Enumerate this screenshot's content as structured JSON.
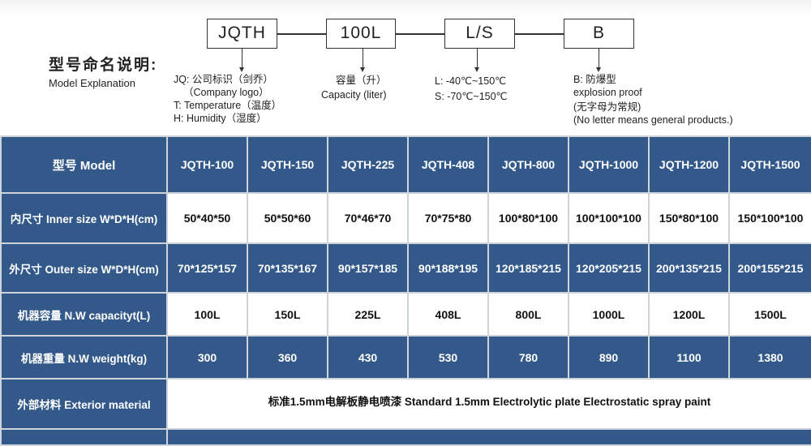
{
  "explanation": {
    "title_zh": "型号命名说明:",
    "title_en": "Model Explanation",
    "boxes": [
      "JQTH",
      "100L",
      "L/S",
      "B"
    ],
    "jq": {
      "line1": "JQ: 公司标识（剑乔）",
      "line2": "（Company logo）",
      "line3": "T: Temperature（温度）",
      "line4": "H: Humidity（湿度）"
    },
    "cap": {
      "line1": "容量（升）",
      "line2": "Capacity (liter)"
    },
    "temp": {
      "line1": "L: -40℃~150℃",
      "line2": "S: -70℃~150℃"
    },
    "b": {
      "line1": "B: 防爆型",
      "line2": "explosion proof",
      "line3": "(无字母为常规)",
      "line4": "(No letter means general products.)"
    }
  },
  "table": {
    "header": {
      "label": "型号 Model",
      "models": [
        "JQTH-100",
        "JQTH-150",
        "JQTH-225",
        "JQTH-408",
        "JQTH-800",
        "JQTH-1000",
        "JQTH-1200",
        "JQTH-1500"
      ]
    },
    "rows": [
      {
        "label": "内尺寸 Inner size W*D*H(cm)",
        "values": [
          "50*40*50",
          "50*50*60",
          "70*46*70",
          "70*75*80",
          "100*80*100",
          "100*100*100",
          "150*80*100",
          "150*100*100"
        ]
      },
      {
        "label": "外尺寸 Outer size W*D*H(cm)",
        "values": [
          "70*125*157",
          "70*135*167",
          "90*157*185",
          "90*188*195",
          "120*185*215",
          "120*205*215",
          "200*135*215",
          "200*155*215"
        ]
      },
      {
        "label": "机器容量 N.W capacityt(L)",
        "values": [
          "100L",
          "150L",
          "225L",
          "408L",
          "800L",
          "1000L",
          "1200L",
          "1500L"
        ]
      },
      {
        "label": "机器重量 N.W weight(kg)",
        "values": [
          "300",
          "360",
          "430",
          "530",
          "780",
          "890",
          "1100",
          "1380"
        ]
      }
    ],
    "exterior": {
      "label": "外部材料 Exterior material",
      "value": "标准1.5mm电解板静电喷漆  Standard 1.5mm Electrolytic plate Electrostatic spray paint"
    }
  },
  "colors": {
    "header_blue": "#33598a",
    "grid": "#cfd4da"
  }
}
